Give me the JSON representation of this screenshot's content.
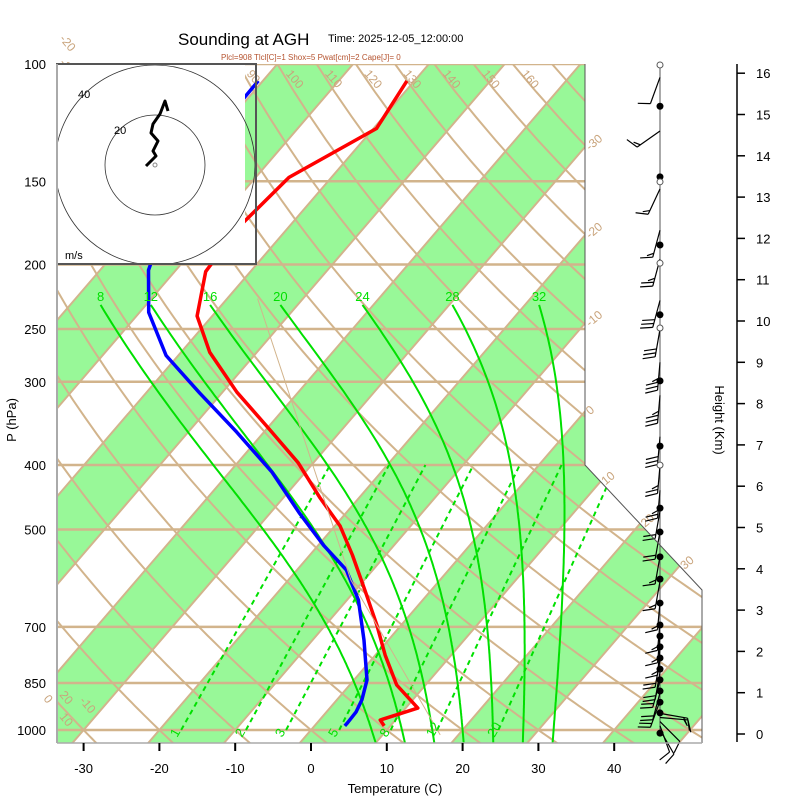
{
  "chart_data": {
    "type": "line",
    "subtype": "skew-t log-p sounding",
    "title": "Sounding at AGH",
    "time_label": "Time: 2025-12-05_12:00:00",
    "indices": "Plcl=908 Tlcl[C]=1 Shox=5 Pwat[cm]=2 Cape[J]= 0",
    "xlabel": "Temperature (C)",
    "ylabel": "P (hPa)",
    "y2label": "Height (Km)",
    "xlim": [
      -33,
      48
    ],
    "ylim_hpa": [
      1050,
      100
    ],
    "x_ticks": [
      -30,
      -20,
      -10,
      0,
      10,
      20,
      30,
      40
    ],
    "p_ticks": [
      100,
      150,
      200,
      250,
      300,
      400,
      500,
      700,
      850,
      1000
    ],
    "height_ticks": [
      0,
      1,
      2,
      3,
      4,
      5,
      6,
      7,
      8,
      9,
      10,
      11,
      12,
      13,
      14,
      15,
      16
    ],
    "isotherm_labels": [
      -30,
      -20,
      -10,
      0,
      10,
      20,
      30
    ],
    "dry_adiabat_labels_top": [
      90,
      100,
      110,
      120,
      130,
      140,
      150,
      160
    ],
    "dry_adiabat_labels_left": [
      20,
      10,
      0,
      -10,
      -20,
      -30
    ],
    "moist_adiabat_labels": [
      8,
      12,
      16,
      20,
      24,
      28,
      32
    ],
    "mixing_ratio_labels": [
      1,
      2,
      3,
      5,
      8,
      12,
      20
    ],
    "series": [
      {
        "name": "Temperature",
        "color": "#ff0000",
        "p": [
          106,
          125,
          148,
          176,
          205,
          239,
          271,
          311,
          352,
          397,
          447,
          494,
          546,
          616,
          696,
          772,
          856,
          927,
          966,
          986
        ],
        "T": [
          -61.0,
          -59.6,
          -65.6,
          -66.6,
          -65.9,
          -62.0,
          -56.2,
          -48.1,
          -39.9,
          -32.0,
          -25.3,
          -19.3,
          -14.4,
          -8.8,
          -3.2,
          1.3,
          6.2,
          11.6,
          8.0,
          9.2
        ]
      },
      {
        "name": "Dewpoint",
        "color": "#0000ff",
        "p": [
          106,
          148,
          176,
          204,
          236,
          274,
          312,
          357,
          410,
          472,
          528,
          575,
          638,
          733,
          841,
          901,
          940,
          975,
          986
        ],
        "T": [
          -80.6,
          -80.3,
          -76.5,
          -73.6,
          -68.8,
          -61.6,
          -52.9,
          -43.6,
          -34.4,
          -26.2,
          -19.3,
          -13.5,
          -8.5,
          -3.2,
          1.7,
          3.3,
          3.9,
          4.0,
          4.0
        ]
      },
      {
        "name": "Parcel",
        "color": "#d2b48c",
        "p": [
          225,
          596,
          1017
        ],
        "T": [
          -56,
          -11.7,
          17.6
        ]
      }
    ],
    "hodograph": {
      "unit_label": "m/s",
      "ring_labels": [
        20,
        40
      ],
      "u": [
        -3.6,
        -1.6,
        0.4,
        -0.8,
        1.2,
        -1.6,
        -0.8,
        2,
        4,
        5.2
      ],
      "v": [
        -0.4,
        1.6,
        3.6,
        5.6,
        9.6,
        12.8,
        16.4,
        20.4,
        25.6,
        21.6
      ]
    },
    "wind_profile": {
      "filled_dots_km": [
        15.2,
        13.49,
        11.84,
        10.15,
        8.55,
        6.97,
        5.47,
        4.89,
        4.29,
        3.75,
        3.17,
        2.64,
        2.37,
        2.11,
        1.84,
        1.57,
        1.31,
        1.04,
        0.77,
        0.51,
        0.02
      ],
      "open_dots_km": [
        16.2,
        13.37,
        11.4,
        9.83,
        6.51
      ],
      "barbs": [
        {
          "km": 15.9,
          "dir": 200,
          "kt": 10
        },
        {
          "km": 14.6,
          "dir": 235,
          "kt": 15
        },
        {
          "km": 13.2,
          "dir": 205,
          "kt": 15
        },
        {
          "km": 12.2,
          "dir": 195,
          "kt": 15
        },
        {
          "km": 11.5,
          "dir": 195,
          "kt": 25
        },
        {
          "km": 10.5,
          "dir": 195,
          "kt": 30
        },
        {
          "km": 9.8,
          "dir": 190,
          "kt": 30
        },
        {
          "km": 9.0,
          "dir": 185,
          "kt": 35
        },
        {
          "km": 8.2,
          "dir": 185,
          "kt": 35
        },
        {
          "km": 7.2,
          "dir": 185,
          "kt": 30
        },
        {
          "km": 6.5,
          "dir": 185,
          "kt": 25
        },
        {
          "km": 5.9,
          "dir": 185,
          "kt": 25
        },
        {
          "km": 5.4,
          "dir": 190,
          "kt": 20
        },
        {
          "km": 4.9,
          "dir": 190,
          "kt": 20
        },
        {
          "km": 4.3,
          "dir": 190,
          "kt": 15
        },
        {
          "km": 3.7,
          "dir": 190,
          "kt": 15
        },
        {
          "km": 3.2,
          "dir": 185,
          "kt": 15
        },
        {
          "km": 2.7,
          "dir": 185,
          "kt": 15
        },
        {
          "km": 2.4,
          "dir": 185,
          "kt": 15
        },
        {
          "km": 2.1,
          "dir": 185,
          "kt": 15
        },
        {
          "km": 1.8,
          "dir": 190,
          "kt": 20
        },
        {
          "km": 1.5,
          "dir": 190,
          "kt": 20
        },
        {
          "km": 1.3,
          "dir": 195,
          "kt": 20
        },
        {
          "km": 1.0,
          "dir": 195,
          "kt": 20
        },
        {
          "km": 0.8,
          "dir": 200,
          "kt": 20
        },
        {
          "km": 0.5,
          "dir": 100,
          "kt": 15
        },
        {
          "km": 0.4,
          "dir": 95,
          "kt": 15
        },
        {
          "km": 0.3,
          "dir": 135,
          "kt": 10
        },
        {
          "km": 0.2,
          "dir": 160,
          "kt": 10
        },
        {
          "km": 0.1,
          "dir": 150,
          "kt": 10
        }
      ]
    },
    "colors": {
      "band": "#98f898",
      "tan": "#d2b48c",
      "moist": "#00e000"
    }
  }
}
